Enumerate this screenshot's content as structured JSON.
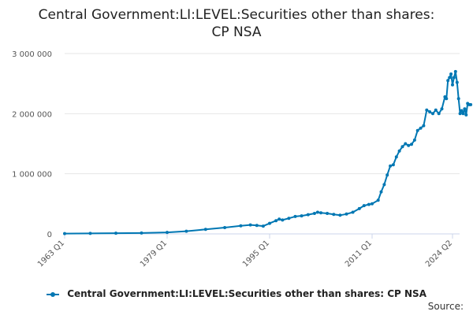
{
  "title": {
    "line1": "Central Government:LI:LEVEL:Securities other than shares:",
    "line2": "CP NSA"
  },
  "legend": {
    "label": "Central Government:LI:LEVEL:Securities other than shares: CP NSA"
  },
  "source": {
    "label": "Source:"
  },
  "colors": {
    "series": "#0077b3",
    "grid": "#e6e6e6",
    "axis": "#ccd6eb"
  },
  "chart_data": {
    "type": "line",
    "title": "Central Government:LI:LEVEL:Securities other than shares: CP NSA",
    "xlabel": "",
    "ylabel": "",
    "x_ticks": [
      "1963 Q1",
      "1979 Q1",
      "1995 Q1",
      "2011 Q1",
      "2024 Q2"
    ],
    "y_ticks": [
      "0",
      "1 000 000",
      "2 000 000",
      "3 000 000"
    ],
    "ylim": [
      0,
      3000000
    ],
    "xlim": [
      1963.0,
      2024.25
    ],
    "grid": true,
    "legend_position": "bottom",
    "series": [
      {
        "name": "Central Government:LI:LEVEL:Securities other than shares: CP NSA",
        "points": [
          [
            1963.0,
            5000
          ],
          [
            1967.0,
            8000
          ],
          [
            1971.0,
            12000
          ],
          [
            1975.0,
            15000
          ],
          [
            1979.0,
            25000
          ],
          [
            1982.0,
            45000
          ],
          [
            1985.0,
            75000
          ],
          [
            1988.0,
            105000
          ],
          [
            1990.5,
            135000
          ],
          [
            1992.0,
            150000
          ],
          [
            1993.0,
            140000
          ],
          [
            1994.0,
            130000
          ],
          [
            1995.0,
            175000
          ],
          [
            1996.0,
            220000
          ],
          [
            1996.5,
            245000
          ],
          [
            1997.0,
            230000
          ],
          [
            1998.0,
            260000
          ],
          [
            1999.0,
            290000
          ],
          [
            2000.0,
            300000
          ],
          [
            2001.0,
            320000
          ],
          [
            2002.0,
            340000
          ],
          [
            2002.5,
            360000
          ],
          [
            2003.0,
            350000
          ],
          [
            2004.0,
            340000
          ],
          [
            2005.0,
            325000
          ],
          [
            2006.0,
            310000
          ],
          [
            2007.0,
            330000
          ],
          [
            2008.0,
            360000
          ],
          [
            2009.0,
            420000
          ],
          [
            2009.75,
            470000
          ],
          [
            2010.5,
            490000
          ],
          [
            2011.0,
            500000
          ],
          [
            2012.0,
            560000
          ],
          [
            2012.5,
            700000
          ],
          [
            2013.0,
            820000
          ],
          [
            2013.5,
            980000
          ],
          [
            2014.0,
            1130000
          ],
          [
            2014.5,
            1150000
          ],
          [
            2015.0,
            1280000
          ],
          [
            2015.5,
            1380000
          ],
          [
            2016.0,
            1450000
          ],
          [
            2016.5,
            1500000
          ],
          [
            2017.0,
            1470000
          ],
          [
            2017.5,
            1490000
          ],
          [
            2018.0,
            1560000
          ],
          [
            2018.5,
            1720000
          ],
          [
            2019.0,
            1760000
          ],
          [
            2019.5,
            1800000
          ],
          [
            2020.0,
            2060000
          ],
          [
            2020.5,
            2030000
          ],
          [
            2021.0,
            2000000
          ],
          [
            2021.5,
            2060000
          ],
          [
            2022.0,
            2000000
          ],
          [
            2022.5,
            2080000
          ],
          [
            2023.0,
            2280000
          ],
          [
            2023.25,
            2250000
          ],
          [
            2023.5,
            2550000
          ],
          [
            2023.75,
            2600000
          ],
          [
            2024.0,
            2660000
          ],
          [
            2024.25,
            2480000
          ],
          [
            2024.5,
            2600000
          ],
          [
            2024.75,
            2700000
          ],
          [
            2025.0,
            2520000
          ],
          [
            2025.25,
            2250000
          ],
          [
            2025.5,
            2000000
          ],
          [
            2025.75,
            2050000
          ],
          [
            2026.0,
            2000000
          ],
          [
            2026.25,
            2080000
          ],
          [
            2026.5,
            1980000
          ],
          [
            2026.75,
            2170000
          ],
          [
            2027.0,
            2150000
          ],
          [
            2027.25,
            2150000
          ]
        ]
      }
    ]
  }
}
